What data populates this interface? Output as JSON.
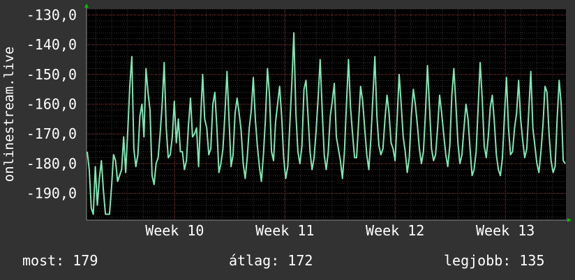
{
  "chart_data": {
    "type": "line",
    "ylabel": "onlinestream.live",
    "ylim": [
      -199,
      -128
    ],
    "yticks": [
      -190,
      -180,
      -170,
      -160,
      -150,
      -140,
      -130
    ],
    "ytick_labels": [
      "-190,0",
      "-180,0",
      "-170,0",
      "-160,0",
      "-150,0",
      "-140,0",
      "-130,0"
    ],
    "xlim": [
      9.2,
      13.55
    ],
    "xticks": [
      10,
      11,
      12,
      13
    ],
    "xtick_labels": [
      "Week 10",
      "Week 11",
      "Week 12",
      "Week 13"
    ],
    "grid": true,
    "colors": {
      "background": "#323232",
      "plot_bg": "#000000",
      "line": "#7ee8b4",
      "grid_major": "#7a2a2a",
      "grid_minor": "#3a3a3a",
      "axis_arrow": "#00c000"
    },
    "series": [
      {
        "values": [
          -176,
          -182,
          -195,
          -197,
          -181,
          -194,
          -185,
          -179,
          -189,
          -197,
          -197,
          -197,
          -188,
          -177,
          -179,
          -186,
          -184,
          -182,
          -171,
          -183,
          -169,
          -154,
          -144,
          -175,
          -181,
          -177,
          -164,
          -160,
          -171,
          -148,
          -156,
          -162,
          -184,
          -187,
          -180,
          -178,
          -170,
          -160,
          -146,
          -168,
          -178,
          -177,
          -171,
          -159,
          -173,
          -165,
          -176,
          -176,
          -182,
          -179,
          -167,
          -158,
          -171,
          -170,
          -168,
          -181,
          -165,
          -150,
          -165,
          -168,
          -177,
          -175,
          -160,
          -156,
          -168,
          -183,
          -180,
          -175,
          -163,
          -149,
          -165,
          -181,
          -177,
          -163,
          -158,
          -163,
          -169,
          -180,
          -185,
          -178,
          -168,
          -162,
          -151,
          -165,
          -174,
          -181,
          -186,
          -177,
          -165,
          -148,
          -157,
          -176,
          -179,
          -166,
          -160,
          -154,
          -164,
          -178,
          -185,
          -181,
          -167,
          -153,
          -136,
          -163,
          -176,
          -180,
          -174,
          -155,
          -152,
          -164,
          -176,
          -182,
          -178,
          -169,
          -158,
          -145,
          -162,
          -177,
          -182,
          -176,
          -164,
          -159,
          -153,
          -171,
          -175,
          -179,
          -185,
          -176,
          -160,
          -145,
          -161,
          -170,
          -178,
          -178,
          -166,
          -154,
          -159,
          -168,
          -177,
          -182,
          -172,
          -158,
          -144,
          -164,
          -174,
          -177,
          -175,
          -165,
          -157,
          -163,
          -173,
          -175,
          -179,
          -165,
          -150,
          -160,
          -171,
          -176,
          -183,
          -178,
          -164,
          -155,
          -160,
          -167,
          -175,
          -180,
          -176,
          -163,
          -147,
          -161,
          -175,
          -179,
          -177,
          -168,
          -157,
          -163,
          -170,
          -177,
          -181,
          -174,
          -157,
          -148,
          -160,
          -173,
          -180,
          -177,
          -168,
          -160,
          -165,
          -175,
          -184,
          -182,
          -176,
          -161,
          -146,
          -158,
          -174,
          -178,
          -171,
          -161,
          -157,
          -166,
          -177,
          -182,
          -184,
          -178,
          -164,
          -151,
          -168,
          -177,
          -176,
          -168,
          -163,
          -152,
          -165,
          -172,
          -178,
          -175,
          -162,
          -149,
          -168,
          -174,
          -180,
          -183,
          -176,
          -167,
          -154,
          -156,
          -170,
          -179,
          -183,
          -181,
          -165,
          -152,
          -160,
          -179,
          -180
        ]
      }
    ]
  },
  "stats": {
    "current": "most: 179",
    "average": "átlag: 172",
    "best": "legjobb: 135"
  }
}
